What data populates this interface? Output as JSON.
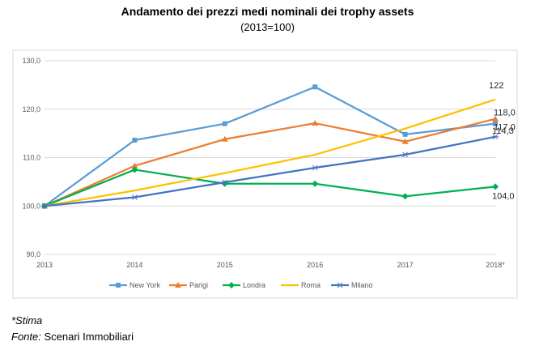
{
  "header": {
    "title": "Andamento dei prezzi medi nominali dei trophy assets",
    "subtitle": "(2013=100)"
  },
  "footer": {
    "note": "*Stima",
    "source_label": "Fonte:",
    "source_value": "Scenari Immobiliari"
  },
  "chart_data": {
    "type": "line",
    "categories": [
      "2013",
      "2014",
      "2015",
      "2016",
      "2017",
      "2018*"
    ],
    "ylim": [
      90,
      130
    ],
    "yticks": [
      "90,0",
      "100,0",
      "110,0",
      "120,0",
      "130,0"
    ],
    "ytick_values": [
      90,
      100,
      110,
      120,
      130
    ],
    "grid": "horizontal",
    "legend_position": "bottom",
    "series": [
      {
        "name": "New York",
        "values": [
          100,
          113.6,
          117,
          124.6,
          114.8,
          117
        ],
        "color": "#5b9bd5",
        "marker": "square",
        "end_label": "117,0"
      },
      {
        "name": "Parigi",
        "values": [
          100,
          108.3,
          113.8,
          117.1,
          113.3,
          118
        ],
        "color": "#ed7d31",
        "marker": "triangle",
        "end_label": "118,0"
      },
      {
        "name": "Londra",
        "values": [
          100,
          107.5,
          104.6,
          104.6,
          102,
          104
        ],
        "color": "#00b050",
        "marker": "diamond",
        "end_label": "104,0"
      },
      {
        "name": "Roma",
        "values": [
          100,
          103.2,
          106.8,
          110.6,
          116,
          122
        ],
        "color": "#ffc000",
        "marker": "none",
        "end_label": "122"
      },
      {
        "name": "Milano",
        "values": [
          100,
          101.8,
          104.9,
          107.9,
          110.6,
          114.3
        ],
        "color": "#4472c4",
        "marker": "star",
        "end_label": "114,3"
      }
    ]
  }
}
